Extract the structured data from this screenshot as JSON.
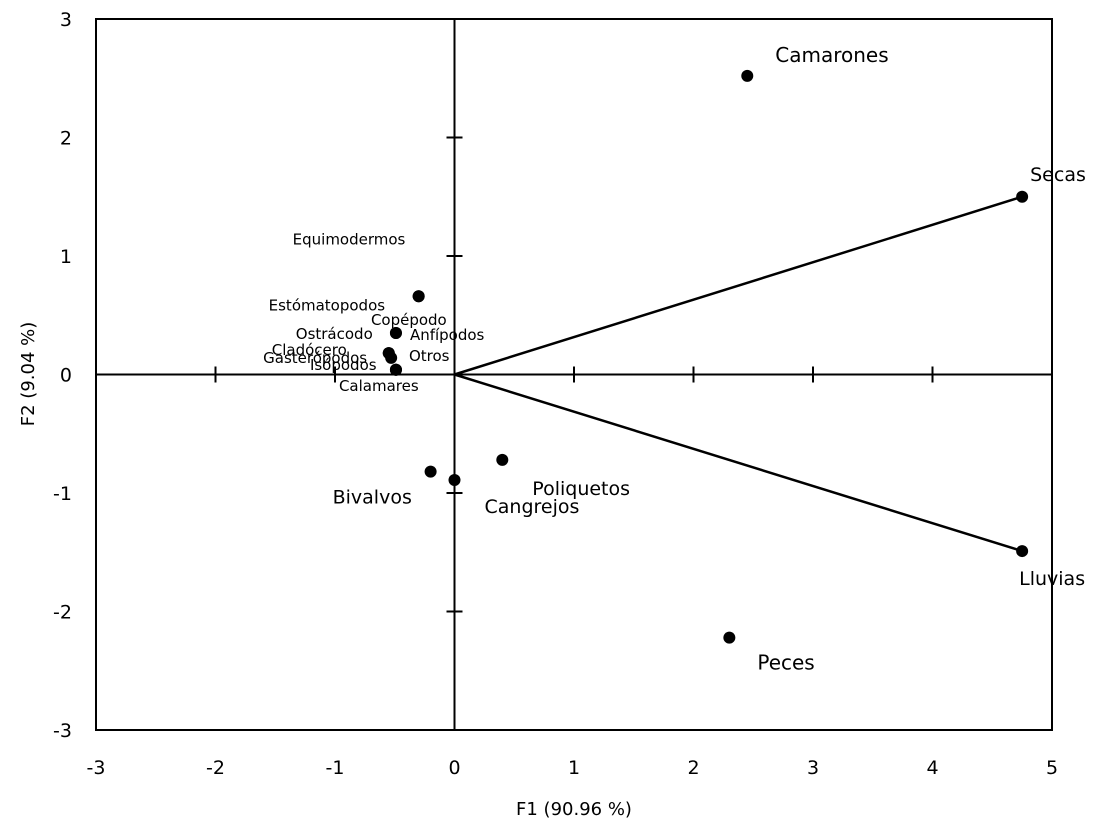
{
  "chart_data": {
    "type": "scatter",
    "xlabel": "F1 (90.96 %)",
    "ylabel": "F2 (9.04 %)",
    "xlim": [
      -3,
      5
    ],
    "ylim": [
      -3,
      3
    ],
    "xticks": [
      "-3",
      "-2",
      "-1",
      "0",
      "1",
      "2",
      "3",
      "4",
      "5"
    ],
    "yticks": [
      "-3",
      "-2",
      "-1",
      "0",
      "1",
      "2",
      "3"
    ],
    "grid": false,
    "points": [
      {
        "label": "Camarones",
        "x": 2.45,
        "y": 2.52
      },
      {
        "label": "Peces",
        "x": 2.3,
        "y": -2.22
      },
      {
        "label": "Equimodermos",
        "x": -0.3,
        "y": 0.66
      },
      {
        "label": "Estómatopodos",
        "x": -0.3,
        "y": 0.66
      },
      {
        "label": "Copépodo",
        "x": -0.49,
        "y": 0.35
      },
      {
        "label": "Anfípodos",
        "x": -0.49,
        "y": 0.35
      },
      {
        "label": "Ostrácodo",
        "x": -0.55,
        "y": 0.18
      },
      {
        "label": "Cladócero",
        "x": -0.55,
        "y": 0.18
      },
      {
        "label": "Gasterópodos",
        "x": -0.53,
        "y": 0.14
      },
      {
        "label": "Isópodos",
        "x": -0.49,
        "y": 0.04
      },
      {
        "label": "Otros",
        "x": -0.49,
        "y": 0.04
      },
      {
        "label": "Calamares",
        "x": -0.49,
        "y": 0.04
      },
      {
        "label": "Bivalvos",
        "x": -0.2,
        "y": -0.82
      },
      {
        "label": "Cangrejos",
        "x": 0.0,
        "y": -0.89
      },
      {
        "label": "Poliquetos",
        "x": 0.4,
        "y": -0.72
      }
    ],
    "vectors": [
      {
        "label": "Secas",
        "x": 4.75,
        "y": 1.5
      },
      {
        "label": "Lluvias",
        "x": 4.75,
        "y": -1.49
      }
    ]
  }
}
